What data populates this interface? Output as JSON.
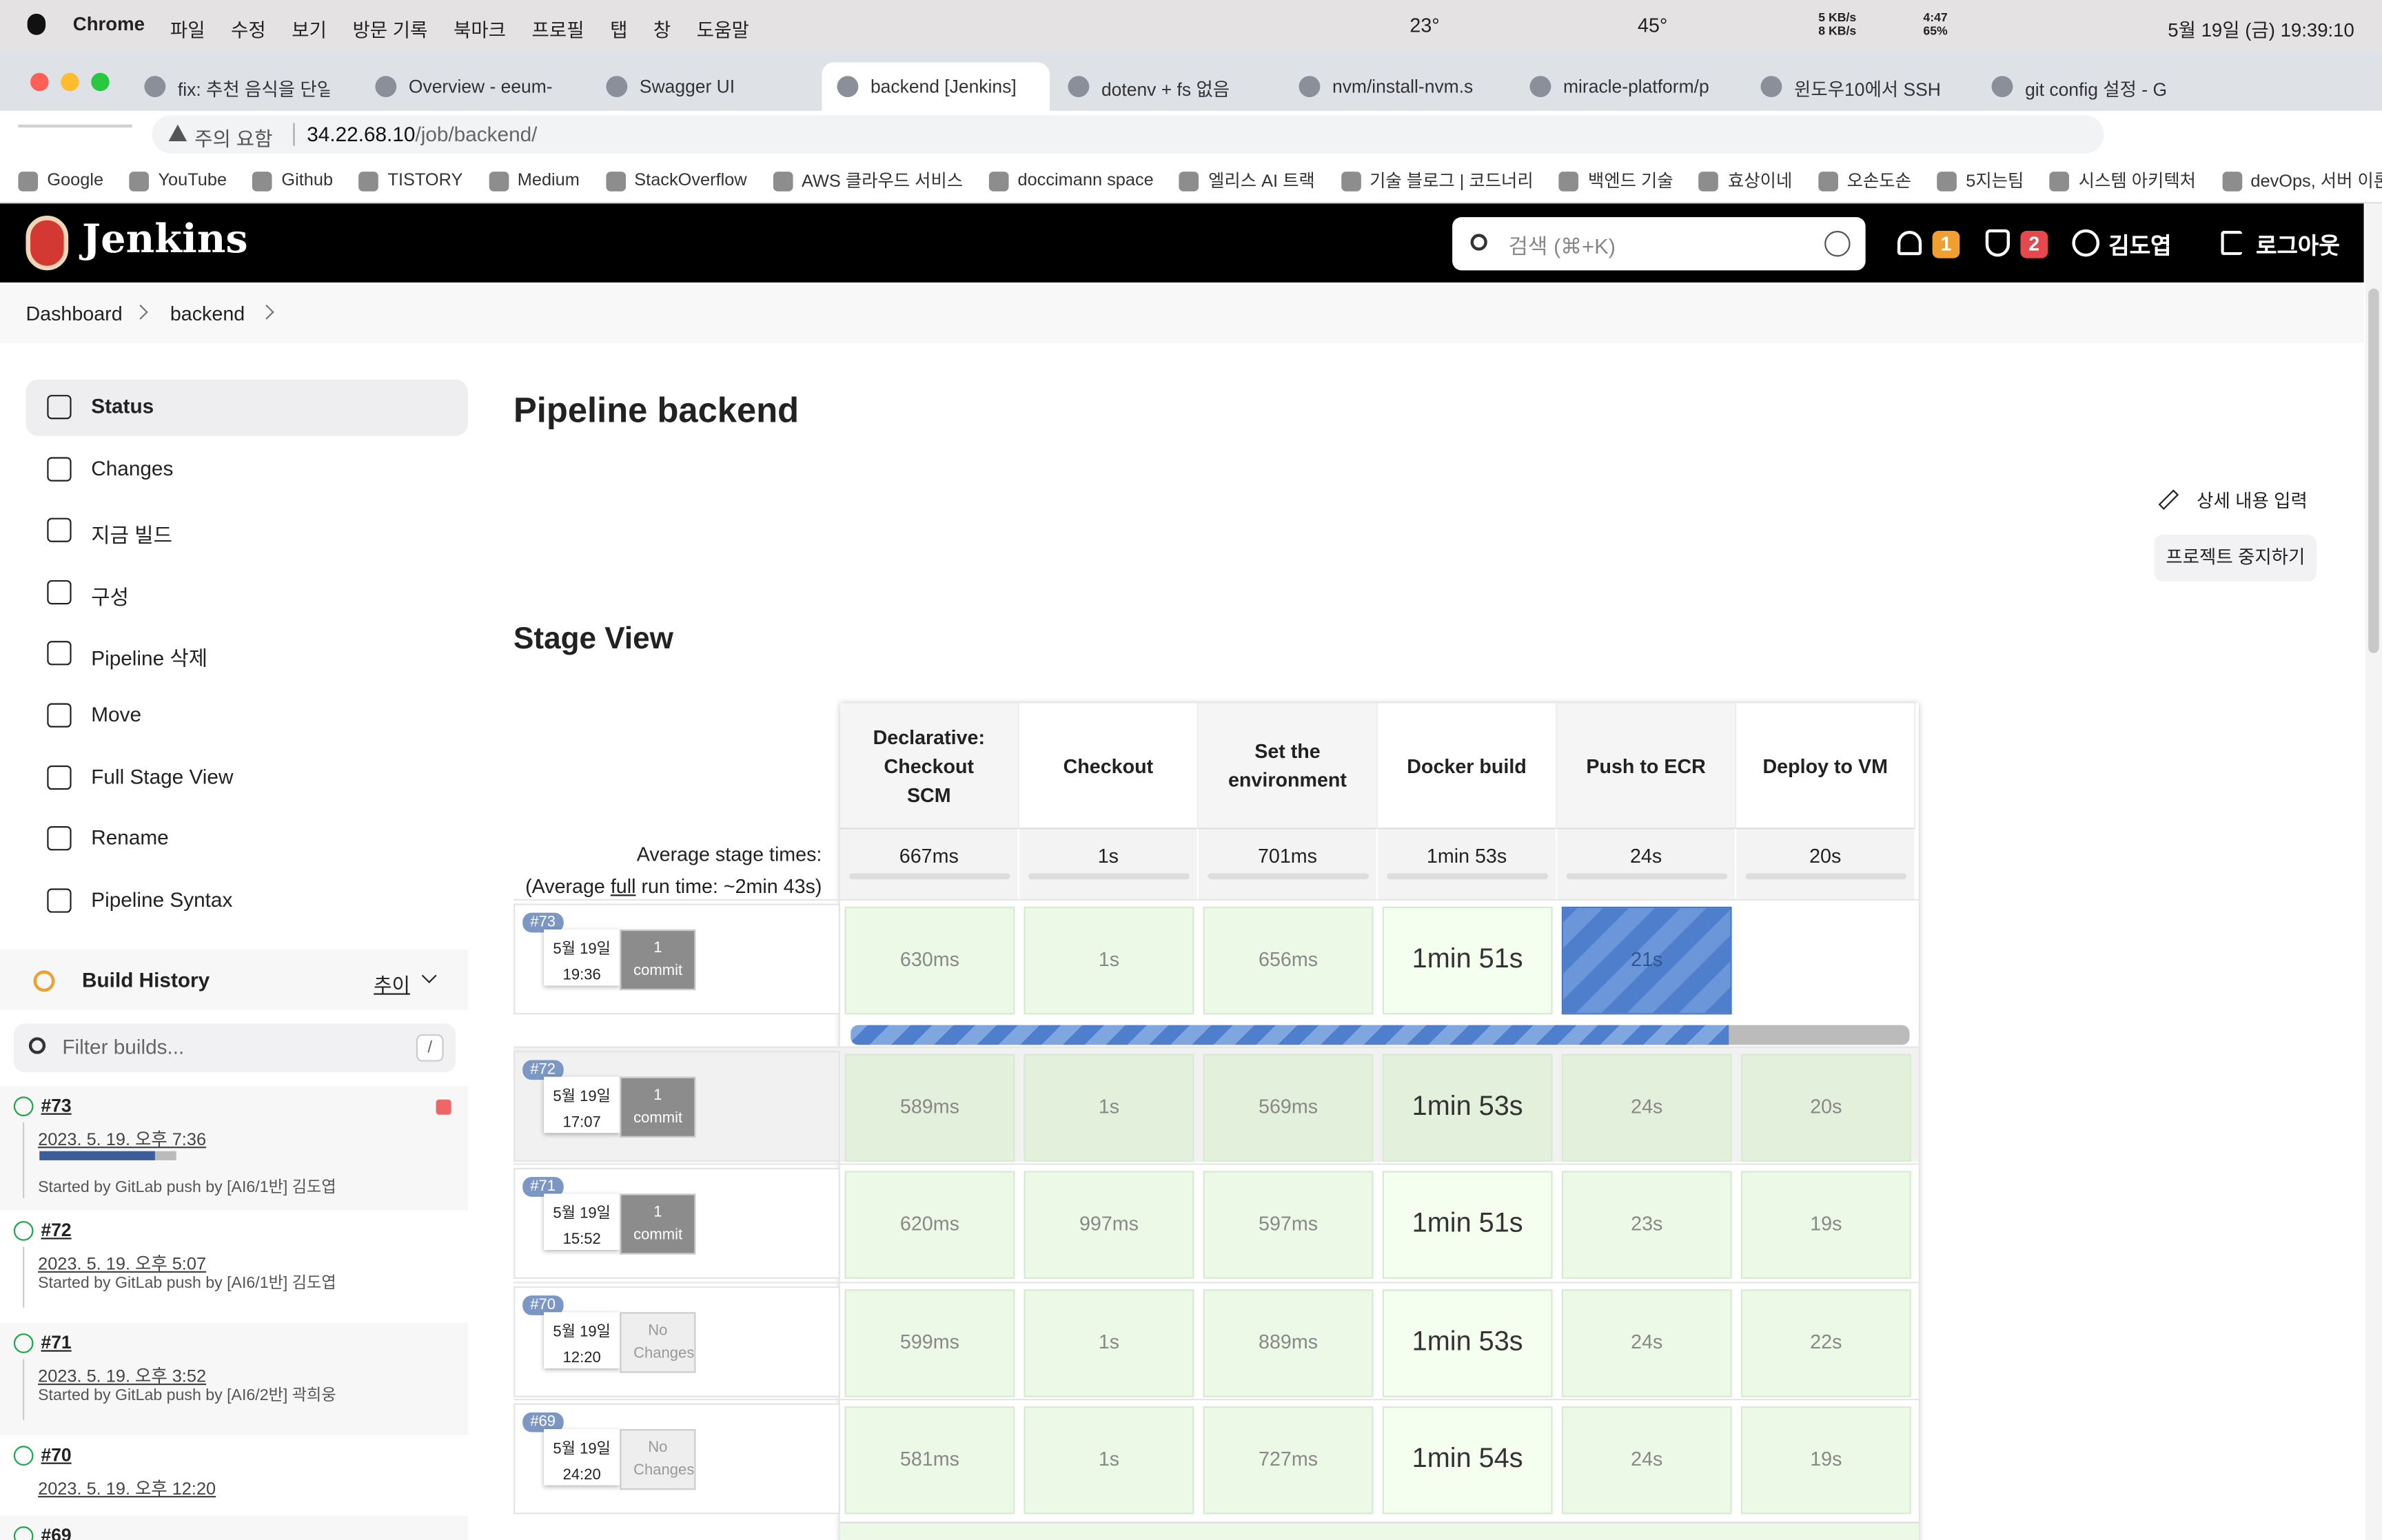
{
  "menubar": {
    "app": "Chrome",
    "menus": [
      "파일",
      "수정",
      "보기",
      "방문 기록",
      "북마크",
      "프로필",
      "탭",
      "창",
      "도움말"
    ],
    "status": [
      "23°",
      "45°",
      "5 KB/s",
      "8 KB/s",
      "4:47",
      "65%"
    ],
    "clock": "5월 19일 (금) 19:39:10"
  },
  "tabs": [
    "fix: 추천 음식을 단일",
    "Overview - eeum-",
    "Swagger UI",
    "backend [Jenkins]",
    "dotenv + fs 없음",
    "nvm/install-nvm.s",
    "miracle-platform/p",
    "윈도우10에서 SSH",
    "git config 설정 - G"
  ],
  "address": {
    "warning": "주의 요함",
    "host": "34.22.68.10",
    "path": "/job/backend/"
  },
  "bookmarks": [
    "Google",
    "YouTube",
    "Github",
    "TISTORY",
    "Medium",
    "StackOverflow",
    "AWS 클라우드 서비스",
    "doccimann space",
    "엘리스 AI 트랙",
    "기술 블로그 | 코드너리",
    "백엔드 기술",
    "효상이네",
    "오손도손",
    "5지는팀",
    "시스템 아키텍처",
    "devOps, 서버 이론"
  ],
  "header": {
    "logo": "Jenkins",
    "search": "검색 (⌘+K)",
    "notifications": "1",
    "security": "2",
    "user": "김도엽",
    "logout": "로그아웃"
  },
  "breadcrumb": [
    "Dashboard",
    "backend"
  ],
  "sidebar": {
    "items": [
      "Status",
      "Changes",
      "지금 빌드",
      "구성",
      "Pipeline 삭제",
      "Move",
      "Full Stage View",
      "Rename",
      "Pipeline Syntax"
    ],
    "history": {
      "title": "Build History",
      "trend": "추이",
      "filter": "Filter builds...",
      "shortcut": "/",
      "builds": [
        {
          "number": "#73",
          "date": "2023. 5. 19. 오후 7:36",
          "cause": "Started by GitLab push by [AI6/1반] 김도엽"
        },
        {
          "number": "#72",
          "date": "2023. 5. 19. 오후 5:07",
          "cause": "Started by GitLab push by [AI6/1반] 김도엽"
        },
        {
          "number": "#71",
          "date": "2023. 5. 19. 오후 3:52",
          "cause": "Started by GitLab push by [AI6/2반] 곽희웅"
        },
        {
          "number": "#70",
          "date": "2023. 5. 19. 오후 12:20"
        },
        {
          "number": "#69"
        }
      ]
    }
  },
  "main": {
    "title": "Pipeline backend",
    "edit": "상세 내용 입력",
    "disable": "프로젝트 중지하기",
    "stage_view": {
      "title": "Stage View",
      "stages": [
        "Declarative: Checkout SCM",
        "Checkout",
        "Set the environment",
        "Docker build",
        "Push to ECR",
        "Deploy to VM"
      ],
      "average_label": "Average stage times:",
      "average_run": [
        "(Average ",
        "full",
        " run time: ~2min 43s)"
      ],
      "averages": [
        "667ms",
        "1s",
        "701ms",
        "1min 53s",
        "24s",
        "20s"
      ],
      "runs": [
        {
          "number": "#73",
          "date": "5월 19일",
          "time": "19:36",
          "changes": "1 commit",
          "cells": [
            "630ms",
            "1s",
            "656ms",
            "1min 51s",
            "21s"
          ]
        },
        {
          "number": "#72",
          "date": "5월 19일",
          "time": "17:07",
          "changes": "1 commit",
          "cells": [
            "589ms",
            "1s",
            "569ms",
            "1min 53s",
            "24s",
            "20s"
          ]
        },
        {
          "number": "#71",
          "date": "5월 19일",
          "time": "15:52",
          "changes": "1 commit",
          "cells": [
            "620ms",
            "997ms",
            "597ms",
            "1min 51s",
            "23s",
            "19s"
          ]
        },
        {
          "number": "#70",
          "date": "5월 19일",
          "time": "12:20",
          "changes": "No Changes",
          "cells": [
            "599ms",
            "1s",
            "889ms",
            "1min 53s",
            "24s",
            "22s"
          ]
        },
        {
          "number": "#69",
          "date": "5월 19일",
          "time": "24:20",
          "changes": "No Changes",
          "cells": [
            "581ms",
            "1s",
            "727ms",
            "1min 54s",
            "24s",
            "19s"
          ]
        }
      ]
    }
  }
}
